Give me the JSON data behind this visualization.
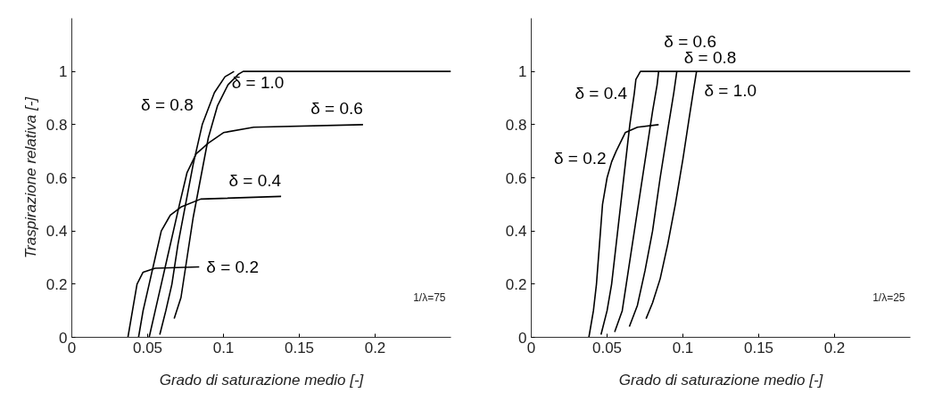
{
  "chart_data": [
    {
      "type": "line",
      "xlabel": "Grado di saturazione medio [-]",
      "ylabel": "Traspirazione relativa [-]",
      "xlim": [
        0,
        0.25
      ],
      "ylim": [
        0,
        1.2
      ],
      "xticks": [
        0,
        0.05,
        0.1,
        0.15,
        0.2
      ],
      "yticks": [
        0,
        0.2,
        0.4,
        0.6,
        0.8,
        1
      ],
      "grid": false,
      "legend": false,
      "marker": "none",
      "line_style": "solid",
      "annotations": [
        "1/λ=75"
      ],
      "series": [
        {
          "name": "δ = 0.2",
          "color": "#000000",
          "x": [
            0.037,
            0.04,
            0.043,
            0.047,
            0.055,
            0.084
          ],
          "values": [
            0,
            0.1,
            0.2,
            0.245,
            0.26,
            0.265
          ]
        },
        {
          "name": "δ = 0.4",
          "color": "#000000",
          "x": [
            0.044,
            0.047,
            0.051,
            0.055,
            0.059,
            0.065,
            0.072,
            0.085,
            0.138
          ],
          "values": [
            0,
            0.1,
            0.2,
            0.3,
            0.4,
            0.46,
            0.49,
            0.52,
            0.53
          ]
        },
        {
          "name": "δ = 0.6",
          "color": "#000000",
          "x": [
            0.051,
            0.055,
            0.059,
            0.063,
            0.067,
            0.071,
            0.076,
            0.082,
            0.09,
            0.1,
            0.12,
            0.192
          ],
          "values": [
            0,
            0.1,
            0.2,
            0.3,
            0.4,
            0.5,
            0.62,
            0.69,
            0.73,
            0.77,
            0.79,
            0.8
          ]
        },
        {
          "name": "δ = 0.8",
          "color": "#000000",
          "x": [
            0.058,
            0.062,
            0.066,
            0.07,
            0.075,
            0.08,
            0.086,
            0.094,
            0.101,
            0.107
          ],
          "values": [
            0.01,
            0.1,
            0.2,
            0.35,
            0.5,
            0.65,
            0.8,
            0.92,
            0.98,
            1
          ]
        },
        {
          "name": "δ = 1.0",
          "color": "#000000",
          "x": [
            0.0675,
            0.072,
            0.076,
            0.08,
            0.085,
            0.09,
            0.096,
            0.103,
            0.11,
            0.113,
            0.25
          ],
          "values": [
            0.07,
            0.15,
            0.3,
            0.45,
            0.6,
            0.75,
            0.87,
            0.95,
            0.99,
            1,
            1
          ]
        }
      ]
    },
    {
      "type": "line",
      "xlabel": "Grado di saturazione medio [-]",
      "xlim": [
        0,
        0.25
      ],
      "ylim": [
        0,
        1.2
      ],
      "xticks": [
        0,
        0.05,
        0.1,
        0.15,
        0.2
      ],
      "yticks": [
        0,
        0.2,
        0.4,
        0.6,
        0.8,
        1
      ],
      "grid": false,
      "legend": false,
      "marker": "none",
      "line_style": "solid",
      "annotations": [
        "1/λ=25"
      ],
      "series": [
        {
          "name": "δ = 0.2",
          "color": "#000000",
          "x": [
            0.038,
            0.041,
            0.043,
            0.045,
            0.047,
            0.05,
            0.053,
            0.056,
            0.062,
            0.07,
            0.084
          ],
          "values": [
            0,
            0.1,
            0.2,
            0.35,
            0.5,
            0.6,
            0.66,
            0.7,
            0.77,
            0.79,
            0.8
          ]
        },
        {
          "name": "δ = 0.4",
          "color": "#000000",
          "x": [
            0.046,
            0.05,
            0.053,
            0.056,
            0.059,
            0.062,
            0.065,
            0.068,
            0.069,
            0.072,
            0.25
          ],
          "values": [
            0.01,
            0.1,
            0.2,
            0.35,
            0.5,
            0.65,
            0.8,
            0.92,
            0.97,
            1,
            1
          ]
        },
        {
          "name": "δ = 0.6",
          "color": "#000000",
          "x": [
            0.055,
            0.06,
            0.064,
            0.068,
            0.072,
            0.076,
            0.08,
            0.083,
            0.084
          ],
          "values": [
            0.02,
            0.1,
            0.25,
            0.4,
            0.55,
            0.7,
            0.85,
            0.95,
            1
          ]
        },
        {
          "name": "δ = 0.8",
          "color": "#000000",
          "x": [
            0.0647,
            0.07,
            0.075,
            0.08,
            0.085,
            0.09,
            0.094,
            0.096
          ],
          "values": [
            0.04,
            0.12,
            0.25,
            0.4,
            0.6,
            0.78,
            0.92,
            1
          ]
        },
        {
          "name": "δ = 1.0",
          "color": "#000000",
          "x": [
            0.0757,
            0.08,
            0.085,
            0.09,
            0.095,
            0.1,
            0.104,
            0.107,
            0.109
          ],
          "values": [
            0.07,
            0.13,
            0.22,
            0.35,
            0.5,
            0.67,
            0.82,
            0.93,
            1
          ]
        }
      ]
    }
  ]
}
